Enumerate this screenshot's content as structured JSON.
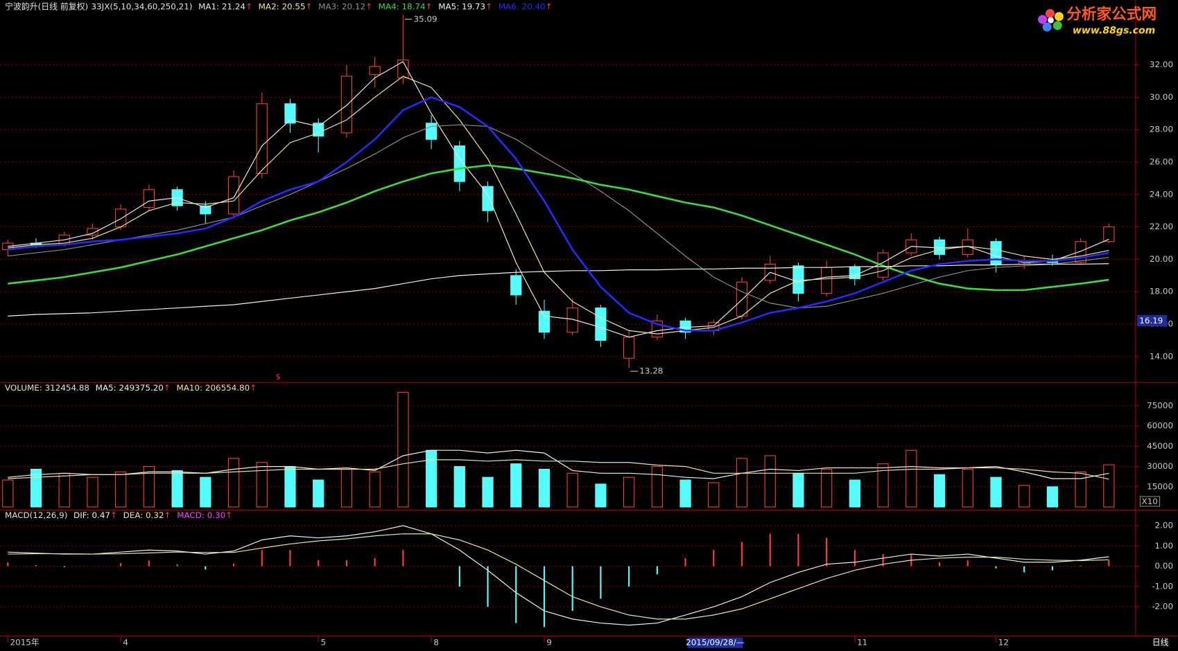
{
  "header": {
    "title": "宁波韵升(日线 前复权)",
    "indicator": "33JX(5,10,34,60,250,21)",
    "arrow": "↑",
    "marker": "$",
    "cursor_date": "2015/09/28/—",
    "period": "日线"
  },
  "logo": {
    "name": "分析家公式网",
    "url": "www.88gs.com"
  },
  "chart_data": [
    {
      "type": "candlestick",
      "categories": [
        "2015年",
        null,
        null,
        null,
        "4",
        null,
        null,
        null,
        null,
        null,
        null,
        "5",
        null,
        null,
        null,
        "8",
        null,
        null,
        null,
        "9",
        null,
        null,
        null,
        null,
        null,
        null,
        null,
        null,
        null,
        null,
        "11",
        null,
        null,
        null,
        null,
        "12",
        null,
        null,
        null,
        null
      ],
      "ohlc": [
        [
          20.6,
          21.2,
          20.2,
          21.0
        ],
        [
          21.0,
          21.3,
          20.7,
          20.9
        ],
        [
          20.9,
          21.7,
          20.8,
          21.5
        ],
        [
          21.5,
          22.2,
          21.2,
          21.9
        ],
        [
          22.0,
          23.4,
          21.8,
          23.1
        ],
        [
          23.2,
          24.6,
          23.0,
          24.3
        ],
        [
          24.3,
          24.5,
          23.0,
          23.3
        ],
        [
          23.3,
          23.6,
          22.2,
          22.8
        ],
        [
          22.8,
          25.5,
          22.6,
          25.1
        ],
        [
          25.3,
          30.3,
          25.0,
          29.6
        ],
        [
          29.6,
          29.9,
          27.8,
          28.4
        ],
        [
          28.4,
          28.7,
          26.6,
          27.6
        ],
        [
          27.8,
          32.0,
          27.5,
          31.3
        ],
        [
          31.4,
          32.5,
          30.6,
          31.9
        ],
        [
          31.2,
          35.09,
          30.8,
          32.3
        ],
        [
          28.4,
          28.9,
          26.8,
          27.4
        ],
        [
          27.0,
          27.3,
          24.2,
          24.8
        ],
        [
          24.5,
          24.8,
          22.3,
          23.0
        ],
        [
          19.0,
          19.4,
          17.2,
          17.8
        ],
        [
          16.8,
          17.5,
          15.1,
          15.5
        ],
        [
          15.5,
          17.6,
          15.3,
          17.0
        ],
        [
          17.0,
          17.2,
          14.6,
          15.0
        ],
        [
          13.9,
          15.6,
          13.28,
          15.2
        ],
        [
          15.2,
          16.6,
          15.0,
          16.2
        ],
        [
          16.2,
          16.4,
          15.1,
          15.5
        ],
        [
          15.6,
          16.3,
          15.3,
          16.1
        ],
        [
          16.5,
          18.9,
          16.3,
          18.6
        ],
        [
          18.7,
          20.2,
          18.5,
          19.7
        ],
        [
          19.6,
          19.8,
          17.4,
          17.9
        ],
        [
          17.9,
          19.9,
          17.7,
          19.5
        ],
        [
          19.5,
          19.7,
          18.4,
          18.8
        ],
        [
          18.9,
          20.6,
          18.7,
          20.4
        ],
        [
          20.4,
          21.6,
          20.2,
          21.2
        ],
        [
          21.2,
          21.4,
          20.0,
          20.3
        ],
        [
          20.3,
          21.9,
          20.1,
          21.2
        ],
        [
          21.1,
          21.3,
          19.2,
          19.7
        ],
        [
          19.7,
          20.2,
          19.4,
          19.9
        ],
        [
          19.9,
          20.3,
          19.6,
          19.8
        ],
        [
          19.8,
          21.3,
          19.7,
          21.1
        ],
        [
          21.1,
          22.2,
          21.0,
          22.0
        ]
      ],
      "up_color": "#ff3c3c",
      "down_color": "#54fcfc",
      "series": [
        {
          "name": "MA1",
          "label": "MA1: 21.24",
          "color": "#e8e8e8",
          "values": [
            20.8,
            21.0,
            21.2,
            21.6,
            22.5,
            23.6,
            23.8,
            23.2,
            23.8,
            27.0,
            28.6,
            28.2,
            29.5,
            31.2,
            32.2,
            29.0,
            26.2,
            24.0,
            19.8,
            16.5,
            16.3,
            15.8,
            15.2,
            15.6,
            15.8,
            15.9,
            17.5,
            19.2,
            18.6,
            18.9,
            19.0,
            19.8,
            20.8,
            20.7,
            20.8,
            20.2,
            19.8,
            19.9,
            20.5,
            21.24
          ]
        },
        {
          "name": "MA2",
          "label": "MA2: 20.55",
          "color": "#f0e68c",
          "values": [
            20.7,
            20.9,
            21.0,
            21.3,
            22.0,
            23.0,
            23.5,
            23.4,
            23.6,
            25.5,
            27.2,
            27.8,
            28.6,
            30.0,
            31.3,
            30.6,
            28.6,
            26.2,
            22.8,
            19.2,
            17.4,
            16.4,
            15.6,
            15.4,
            15.6,
            15.8,
            16.5,
            17.9,
            18.7,
            18.8,
            18.9,
            19.3,
            20.1,
            20.6,
            20.8,
            20.6,
            20.2,
            20.0,
            20.2,
            20.55
          ]
        },
        {
          "name": "MA3",
          "label": "MA3: 20.12",
          "color": "#8c8c8c",
          "values": [
            20.2,
            20.4,
            20.6,
            20.9,
            21.2,
            21.5,
            21.8,
            22.2,
            22.6,
            23.3,
            24.0,
            24.8,
            25.6,
            26.5,
            27.5,
            28.2,
            28.3,
            28.2,
            27.4,
            26.3,
            25.3,
            24.2,
            23.0,
            21.6,
            20.2,
            18.9,
            18.0,
            17.3,
            17.0,
            17.1,
            17.5,
            17.9,
            18.4,
            18.9,
            19.3,
            19.5,
            19.6,
            19.7,
            19.9,
            20.12
          ]
        },
        {
          "name": "MA4",
          "label": "MA4: 18.74",
          "color": "#3cdc3c",
          "values": [
            18.5,
            18.7,
            18.9,
            19.2,
            19.5,
            19.9,
            20.3,
            20.8,
            21.3,
            21.8,
            22.4,
            22.9,
            23.5,
            24.2,
            24.8,
            25.3,
            25.6,
            25.8,
            25.6,
            25.3,
            25.0,
            24.6,
            24.3,
            23.9,
            23.5,
            23.2,
            22.7,
            22.1,
            21.5,
            20.9,
            20.3,
            19.6,
            19.0,
            18.5,
            18.2,
            18.1,
            18.1,
            18.3,
            18.5,
            18.74
          ]
        },
        {
          "name": "MA5",
          "label": "MA5: 19.73",
          "color": "#f0f0f0",
          "values": [
            16.5,
            16.6,
            16.65,
            16.7,
            16.8,
            16.9,
            17.0,
            17.1,
            17.2,
            17.4,
            17.6,
            17.8,
            18.0,
            18.2,
            18.5,
            18.8,
            19.0,
            19.1,
            19.2,
            19.25,
            19.3,
            19.3,
            19.35,
            19.35,
            19.4,
            19.4,
            19.45,
            19.45,
            19.5,
            19.5,
            19.55,
            19.55,
            19.6,
            19.6,
            19.65,
            19.65,
            19.7,
            19.7,
            19.7,
            19.73
          ]
        },
        {
          "name": "MA6",
          "label": "MA6: 20.40",
          "color": "#2828ff",
          "values": [
            20.6,
            20.8,
            20.9,
            21.1,
            21.2,
            21.4,
            21.6,
            21.9,
            22.6,
            23.6,
            24.3,
            24.8,
            26.0,
            27.4,
            29.2,
            30.0,
            29.4,
            28.2,
            26.2,
            23.6,
            20.6,
            18.3,
            16.7,
            16.0,
            15.6,
            15.6,
            16.1,
            16.7,
            17.0,
            17.4,
            17.9,
            18.6,
            19.3,
            19.7,
            19.9,
            20.0,
            19.9,
            19.9,
            20.1,
            20.4
          ]
        }
      ],
      "cursor_price": 16.19,
      "ylim": [
        12.4,
        36.0
      ],
      "yticks": [
        {
          "value": 14,
          "label": "14.00"
        },
        {
          "value": 16,
          "label": "16.00"
        },
        {
          "value": 18,
          "label": "18.00"
        },
        {
          "value": 20,
          "label": "20.00"
        },
        {
          "value": 22,
          "label": "22.00"
        },
        {
          "value": 24,
          "label": "24.00"
        },
        {
          "value": 26,
          "label": "26.00"
        },
        {
          "value": 28,
          "label": "28.00"
        },
        {
          "value": 30,
          "label": "30.00"
        },
        {
          "value": 32,
          "label": "32.00"
        }
      ],
      "grid": true
    },
    {
      "type": "volume",
      "label": "VOLUME: 312454.88",
      "unit": "X10",
      "values": [
        20000,
        28000,
        25000,
        22000,
        26000,
        30000,
        27000,
        22000,
        36000,
        33000,
        30000,
        20000,
        28000,
        26000,
        85000,
        42000,
        30000,
        22000,
        32000,
        28000,
        25000,
        17000,
        22000,
        30000,
        20000,
        18000,
        36000,
        38000,
        25000,
        28000,
        20000,
        32000,
        42000,
        24000,
        28000,
        22000,
        16000,
        15000,
        26000,
        31245.488
      ],
      "series": [
        {
          "name": "MA5",
          "label": "MA5: 249375.20",
          "color": "#f0f0f0",
          "values": [
            22000,
            24000,
            25000,
            24000,
            24000,
            26000,
            26000,
            25000,
            28000,
            30000,
            30000,
            28000,
            29000,
            27000,
            38000,
            42000,
            42000,
            40000,
            42000,
            40000,
            27000,
            25000,
            25000,
            24000,
            22000,
            21000,
            25000,
            28000,
            27000,
            29000,
            29000,
            29000,
            30000,
            29000,
            29000,
            30000,
            26000,
            21000,
            21000,
            24937.52
          ]
        },
        {
          "name": "MA10",
          "label": "MA10: 206554.80",
          "color": "#f0e68c",
          "values": [
            21000,
            22000,
            23000,
            24000,
            24000,
            25000,
            25000,
            25000,
            26000,
            27000,
            28000,
            28000,
            28000,
            28000,
            32000,
            35000,
            35000,
            34000,
            35000,
            34000,
            34000,
            33000,
            33000,
            31000,
            30000,
            25000,
            25000,
            25000,
            25000,
            25000,
            25000,
            27000,
            28000,
            28000,
            29000,
            29000,
            28000,
            26000,
            25000,
            20655.48
          ]
        }
      ],
      "ylim": [
        0,
        90000
      ],
      "yticks": [
        15000,
        30000,
        45000,
        60000,
        75000
      ],
      "grid": true
    },
    {
      "type": "macd",
      "title": "MACD(12,26,9)",
      "label": "MACD: 0.30",
      "color": "#ff40ff",
      "values": [
        0.2,
        0.06,
        -0.04,
        0,
        0.16,
        0.28,
        0.1,
        -0.16,
        0.14,
        0.8,
        0.8,
        0.3,
        0.3,
        0.4,
        0.8,
        0,
        -1.0,
        -2.0,
        -2.8,
        -3.0,
        -2.2,
        -1.6,
        -1.0,
        -0.4,
        0.4,
        0.8,
        1.2,
        1.6,
        1.6,
        1.4,
        0.8,
        0.6,
        0.6,
        0.2,
        0.3,
        -0.1,
        -0.3,
        -0.2,
        0.04,
        0.3
      ],
      "series": [
        {
          "name": "DIF",
          "label": "DIF: 0.47",
          "color": "#f0f0f0",
          "values": [
            0.7,
            0.65,
            0.6,
            0.6,
            0.7,
            0.8,
            0.75,
            0.6,
            0.75,
            1.3,
            1.5,
            1.4,
            1.5,
            1.7,
            2.0,
            1.6,
            0.8,
            -0.2,
            -1.3,
            -2.2,
            -2.6,
            -2.8,
            -2.9,
            -2.8,
            -2.4,
            -2.0,
            -1.5,
            -0.8,
            -0.3,
            0.1,
            0.2,
            0.4,
            0.6,
            0.5,
            0.6,
            0.4,
            0.2,
            0.2,
            0.3,
            0.47
          ]
        },
        {
          "name": "DEA",
          "label": "DEA: 0.32",
          "color": "#f0e68c",
          "values": [
            0.6,
            0.62,
            0.62,
            0.6,
            0.62,
            0.66,
            0.7,
            0.68,
            0.68,
            0.9,
            1.1,
            1.25,
            1.35,
            1.5,
            1.6,
            1.6,
            1.3,
            0.8,
            0.1,
            -0.7,
            -1.5,
            -2.0,
            -2.4,
            -2.6,
            -2.6,
            -2.4,
            -2.1,
            -1.6,
            -1.1,
            -0.6,
            -0.2,
            0.1,
            0.3,
            0.4,
            0.45,
            0.45,
            0.35,
            0.3,
            0.28,
            0.32
          ]
        }
      ],
      "ylim": [
        -3.4,
        2.7
      ],
      "yticks": [
        {
          "value": -2,
          "label": "-2.00"
        },
        {
          "value": -1,
          "label": "-1.00"
        },
        {
          "value": 0,
          "label": "0.00"
        },
        {
          "value": 1,
          "label": "1.00"
        },
        {
          "value": 2,
          "label": "2.00"
        }
      ],
      "grid": true
    }
  ]
}
